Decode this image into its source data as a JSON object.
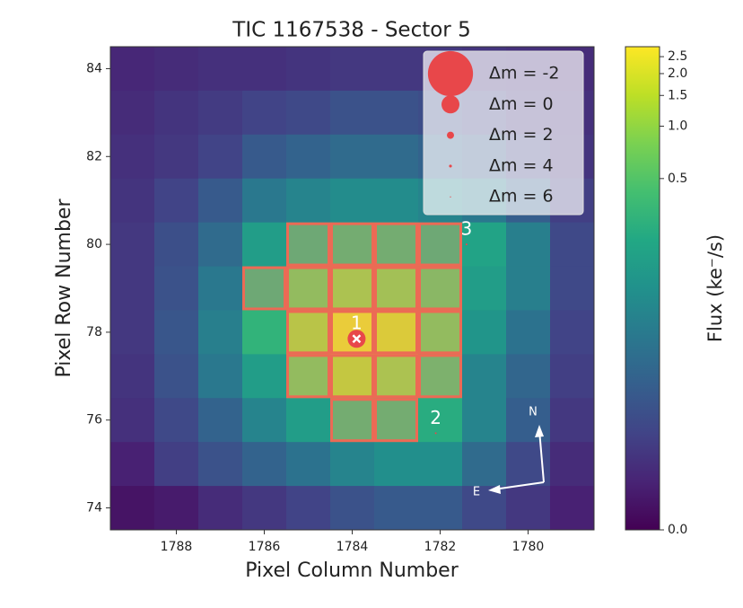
{
  "chart_data": {
    "type": "heatmap",
    "title": "TIC 1167538 - Sector 5",
    "x_label": "Pixel Column Number",
    "y_label": "Pixel Row Number",
    "colorbar_label": "Flux  (ke⁻/s)",
    "colormap": "viridis",
    "columns": [
      1789,
      1788,
      1787,
      1786,
      1785,
      1784,
      1783,
      1782,
      1781,
      1780,
      1779
    ],
    "rows": [
      84,
      83,
      82,
      81,
      80,
      79,
      78,
      77,
      76,
      75,
      74
    ],
    "values": [
      [
        0.005,
        0.006,
        0.007,
        0.007,
        0.008,
        0.009,
        0.009,
        0.009,
        0.008,
        0.007,
        0.006
      ],
      [
        0.006,
        0.008,
        0.01,
        0.013,
        0.015,
        0.02,
        0.02,
        0.017,
        0.013,
        0.009,
        0.007
      ],
      [
        0.007,
        0.009,
        0.013,
        0.025,
        0.032,
        0.04,
        0.04,
        0.032,
        0.023,
        0.013,
        0.008
      ],
      [
        0.008,
        0.013,
        0.025,
        0.058,
        0.08,
        0.1,
        0.1,
        0.08,
        0.058,
        0.028,
        0.011
      ],
      [
        0.009,
        0.018,
        0.04,
        0.16,
        0.25,
        0.3,
        0.3,
        0.25,
        0.19,
        0.07,
        0.015
      ],
      [
        0.009,
        0.02,
        0.058,
        0.25,
        0.6,
        0.9,
        0.8,
        0.5,
        0.16,
        0.07,
        0.015
      ],
      [
        0.009,
        0.022,
        0.07,
        0.3,
        1.1,
        2.3,
        1.8,
        0.6,
        0.13,
        0.05,
        0.013
      ],
      [
        0.008,
        0.02,
        0.058,
        0.16,
        0.6,
        1.3,
        0.9,
        0.38,
        0.08,
        0.035,
        0.011
      ],
      [
        0.007,
        0.015,
        0.032,
        0.08,
        0.16,
        0.3,
        0.3,
        0.25,
        0.08,
        0.028,
        0.009
      ],
      [
        0.004,
        0.011,
        0.02,
        0.032,
        0.05,
        0.08,
        0.11,
        0.11,
        0.04,
        0.015,
        0.006
      ],
      [
        0.002,
        0.003,
        0.006,
        0.009,
        0.013,
        0.02,
        0.025,
        0.025,
        0.015,
        0.009,
        0.004
      ]
    ],
    "xlim": [
      1789.5,
      1778.5
    ],
    "ylim": [
      73.5,
      84.5
    ],
    "xticks": [
      1788,
      1786,
      1784,
      1782,
      1780
    ],
    "yticks": [
      74,
      76,
      78,
      80,
      82,
      84
    ],
    "clim": [
      0,
      2.85
    ],
    "cticks": [
      {
        "value": 0,
        "label": "0.0"
      },
      0.5,
      {
        "value": 1,
        "label": "1.0"
      },
      1.5,
      {
        "value": 2,
        "label": "2.0"
      },
      2.5
    ],
    "aperture": [
      [
        1785,
        80
      ],
      [
        1784,
        80
      ],
      [
        1783,
        80
      ],
      [
        1782,
        80
      ],
      [
        1786,
        79
      ],
      [
        1785,
        79
      ],
      [
        1784,
        79
      ],
      [
        1783,
        79
      ],
      [
        1782,
        79
      ],
      [
        1785,
        78
      ],
      [
        1784,
        78
      ],
      [
        1783,
        78
      ],
      [
        1782,
        78
      ],
      [
        1785,
        77
      ],
      [
        1784,
        77
      ],
      [
        1783,
        77
      ],
      [
        1782,
        77
      ],
      [
        1784,
        76
      ],
      [
        1783,
        76
      ]
    ],
    "stars": {
      "color": "#e8474a",
      "labels": [
        "1",
        "2",
        "3"
      ],
      "x": [
        1783.9,
        1782.1,
        1781.4
      ],
      "y": [
        77.85,
        75.7,
        80.0
      ],
      "dm": [
        0,
        5,
        5
      ]
    },
    "legend": [
      {
        "label": "Δm =  -2",
        "dm": -2
      },
      {
        "label": "Δm =  0",
        "dm": 0
      },
      {
        "label": "Δm =  2",
        "dm": 2
      },
      {
        "label": "Δm =  4",
        "dm": 4
      },
      {
        "label": "Δm =  6",
        "dm": 6
      }
    ],
    "compass": {
      "north": "N",
      "east": "E"
    }
  }
}
